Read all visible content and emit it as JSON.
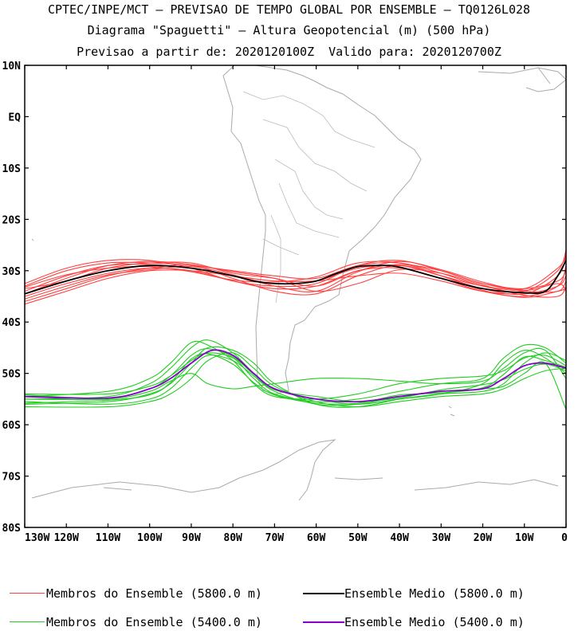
{
  "title": {
    "line1": "CPTEC/INPE/MCT — PREVISAO DE TEMPO GLOBAL POR ENSEMBLE — TQ0126L028",
    "line2": "Diagrama \"Spaguetti\" — Altura Geopotencial (m) (500 hPa)",
    "line3": "Previsao a partir de: 2020120100Z  Valido para: 2020120700Z"
  },
  "colors": {
    "member_5800": "#ff4040",
    "mean_5800": "#000000",
    "member_5400": "#22cc22",
    "mean_5400": "#8800cc",
    "coast": "#aaaaaa"
  },
  "legend": [
    {
      "label": "Membros do Ensemble (5800.0 m)",
      "color": "#ff4040",
      "bold": false
    },
    {
      "label": "Ensemble Medio (5800.0 m)",
      "color": "#000000",
      "bold": true
    },
    {
      "label": "Membros do Ensemble (5400.0 m)",
      "color": "#22cc22",
      "bold": false
    },
    {
      "label": "Ensemble Medio (5400.0 m)",
      "color": "#8800cc",
      "bold": true
    }
  ],
  "chart_data": {
    "type": "line",
    "map_region": "South America",
    "x_axis": {
      "range": [
        -130,
        0
      ],
      "ticks": [
        -130,
        -120,
        -110,
        -100,
        -90,
        -80,
        -70,
        -60,
        -50,
        -40,
        -30,
        -20,
        -10,
        0
      ],
      "tick_labels": [
        "130W",
        "120W",
        "110W",
        "100W",
        "90W",
        "80W",
        "70W",
        "60W",
        "50W",
        "40W",
        "30W",
        "20W",
        "10W",
        "0"
      ]
    },
    "y_axis": {
      "range": [
        -80,
        10
      ],
      "ticks": [
        10,
        0,
        -10,
        -20,
        -30,
        -40,
        -50,
        -60,
        -70,
        -80
      ],
      "tick_labels": [
        "10N",
        "EQ",
        "10S",
        "20S",
        "30S",
        "40S",
        "50S",
        "60S",
        "70S",
        "80S"
      ]
    },
    "series": [
      {
        "name": "Ensemble Medio (5800.0 m)",
        "group": "5800",
        "kind": "mean",
        "lon": [
          -130,
          -120,
          -110,
          -100,
          -90,
          -80,
          -75,
          -70,
          -65,
          -60,
          -55,
          -50,
          -45,
          -40,
          -30,
          -20,
          -10,
          -5,
          -2,
          0
        ],
        "lat": [
          -34.5,
          -32,
          -30,
          -29,
          -29.5,
          -31,
          -32,
          -32.5,
          -32.5,
          -32,
          -30.5,
          -29.2,
          -29,
          -29.3,
          -31.5,
          -33.5,
          -34.3,
          -34,
          -31,
          -28
        ]
      },
      {
        "name": "Ensemble Medio (5400.0 m)",
        "group": "5400",
        "kind": "mean",
        "lon": [
          -130,
          -110,
          -100,
          -95,
          -90,
          -85,
          -80,
          -75,
          -70,
          -60,
          -50,
          -40,
          -30,
          -20,
          -15,
          -10,
          -5,
          0
        ],
        "lat": [
          -54.5,
          -54.8,
          -53,
          -51,
          -48,
          -45.5,
          -46.5,
          -50,
          -53,
          -55,
          -55.5,
          -54.5,
          -53.5,
          -53,
          -51,
          -48.5,
          -48,
          -49
        ]
      }
    ],
    "members_5800": [
      {
        "lon": [
          -130,
          -120,
          -110,
          -100,
          -90,
          -80,
          -70,
          -60,
          -50,
          -40,
          -30,
          -20,
          -10,
          -2,
          0
        ],
        "lat": [
          -33,
          -30,
          -28.5,
          -28.5,
          -29,
          -30,
          -31,
          -31.5,
          -29,
          -28.5,
          -30.5,
          -33,
          -34,
          -30,
          -26
        ]
      },
      {
        "lon": [
          -130,
          -120,
          -110,
          -100,
          -90,
          -80,
          -70,
          -60,
          -50,
          -40,
          -30,
          -20,
          -10,
          -2,
          0
        ],
        "lat": [
          -34,
          -31,
          -29,
          -28.8,
          -29.5,
          -31,
          -32.5,
          -32,
          -29.5,
          -29,
          -31,
          -33.5,
          -34.5,
          -31,
          -27
        ]
      },
      {
        "lon": [
          -130,
          -120,
          -110,
          -100,
          -90,
          -80,
          -70,
          -60,
          -50,
          -40,
          -30,
          -20,
          -10,
          -2,
          0
        ],
        "lat": [
          -35,
          -32.5,
          -30.5,
          -29.5,
          -30,
          -32,
          -33.5,
          -33,
          -30,
          -29.5,
          -31.5,
          -34,
          -35,
          -33,
          -29
        ]
      },
      {
        "lon": [
          -130,
          -120,
          -110,
          -100,
          -90,
          -80,
          -70,
          -60,
          -50,
          -40,
          -30,
          -20,
          -10,
          -2,
          0
        ],
        "lat": [
          -36,
          -33.5,
          -31,
          -29.5,
          -29,
          -31.5,
          -34,
          -34.5,
          -31,
          -29,
          -31,
          -33,
          -34,
          -34,
          -32
        ]
      },
      {
        "lon": [
          -130,
          -120,
          -110,
          -100,
          -90,
          -80,
          -70,
          -60,
          -50,
          -40,
          -30,
          -20,
          -10,
          -2,
          0
        ],
        "lat": [
          -33.5,
          -32,
          -29.5,
          -28.5,
          -28.5,
          -30.5,
          -31.5,
          -33,
          -30,
          -28.8,
          -30,
          -32.5,
          -33.5,
          -32,
          -30
        ]
      },
      {
        "lon": [
          -130,
          -120,
          -110,
          -100,
          -90,
          -80,
          -70,
          -60,
          -50,
          -40,
          -30,
          -20,
          -10,
          -2,
          0
        ],
        "lat": [
          -32.5,
          -29.5,
          -28,
          -28,
          -29.5,
          -32,
          -33,
          -32.5,
          -29,
          -28,
          -30,
          -32.5,
          -33.5,
          -29.5,
          -27
        ]
      },
      {
        "lon": [
          -130,
          -120,
          -110,
          -100,
          -90,
          -80,
          -70,
          -60,
          -50,
          -40,
          -30,
          -20,
          -10,
          -2,
          0
        ],
        "lat": [
          -36.5,
          -34,
          -31.5,
          -30,
          -30,
          -31,
          -32,
          -32,
          -31,
          -30.5,
          -32,
          -34,
          -34.5,
          -33,
          -31
        ]
      },
      {
        "lon": [
          -130,
          -120,
          -110,
          -100,
          -90,
          -80,
          -70,
          -60,
          -50,
          -40,
          -30,
          -20,
          -10,
          -2,
          0
        ],
        "lat": [
          -34.5,
          -31.5,
          -29,
          -28.2,
          -28.8,
          -30.2,
          -31.5,
          -34,
          -32.5,
          -29.8,
          -30.5,
          -32.8,
          -34.8,
          -35,
          -33
        ]
      },
      {
        "lon": [
          -130,
          -120,
          -110,
          -100,
          -90,
          -80,
          -70,
          -60,
          -50,
          -40,
          -30,
          -20,
          -10,
          -2,
          0
        ],
        "lat": [
          -33.2,
          -30.8,
          -29.5,
          -29.2,
          -30.2,
          -31.8,
          -32.2,
          -31.2,
          -28.5,
          -28.5,
          -31,
          -33.8,
          -35.2,
          -34,
          -33.5
        ]
      },
      {
        "lon": [
          -130,
          -120,
          -110,
          -100,
          -90,
          -80,
          -70,
          -60,
          -50,
          -40,
          -30,
          -20,
          -10,
          -2,
          0
        ],
        "lat": [
          -35.5,
          -33,
          -30.8,
          -29.8,
          -29.2,
          -30.8,
          -33,
          -34,
          -30.2,
          -28.2,
          -29.8,
          -32.2,
          -33.8,
          -32.5,
          -34
        ]
      }
    ],
    "members_5400": [
      {
        "lon": [
          -130,
          -110,
          -100,
          -95,
          -90,
          -86,
          -80,
          -75,
          -70,
          -60,
          -50,
          -40,
          -30,
          -20,
          -15,
          -10,
          -5,
          0
        ],
        "lat": [
          -55,
          -54.5,
          -52,
          -49,
          -45,
          -43.5,
          -46,
          -50,
          -53,
          -55,
          -56,
          -55,
          -54,
          -52,
          -48,
          -45.5,
          -47,
          -50
        ]
      },
      {
        "lon": [
          -130,
          -110,
          -100,
          -95,
          -90,
          -86,
          -80,
          -75,
          -70,
          -60,
          -50,
          -40,
          -30,
          -20,
          -15,
          -10,
          -5,
          0
        ],
        "lat": [
          -56,
          -55.5,
          -54,
          -52,
          -48,
          -45,
          -45.5,
          -48,
          -52,
          -56,
          -56.5,
          -55,
          -54,
          -53.5,
          -52,
          -48,
          -46,
          -47.5
        ]
      },
      {
        "lon": [
          -130,
          -110,
          -100,
          -95,
          -90,
          -86,
          -80,
          -75,
          -70,
          -60,
          -50,
          -40,
          -30,
          -20,
          -15,
          -10,
          -5,
          0
        ],
        "lat": [
          -54,
          -54,
          -52.5,
          -50.5,
          -47.5,
          -46,
          -47,
          -51,
          -54,
          -55.5,
          -55,
          -53.5,
          -52,
          -51,
          -47,
          -44.5,
          -45,
          -48
        ]
      },
      {
        "lon": [
          -130,
          -110,
          -100,
          -95,
          -90,
          -86,
          -80,
          -75,
          -70,
          -60,
          -50,
          -40,
          -30,
          -20,
          -15,
          -10,
          -5,
          0
        ],
        "lat": [
          -55.5,
          -56,
          -55,
          -53,
          -49,
          -46.5,
          -47.5,
          -50.5,
          -53.5,
          -56,
          -56,
          -54.5,
          -53.5,
          -53,
          -52.5,
          -50,
          -48,
          -57
        ]
      },
      {
        "lon": [
          -130,
          -110,
          -100,
          -95,
          -90,
          -86,
          -80,
          -75,
          -70,
          -60,
          -50,
          -40,
          -30,
          -20,
          -15,
          -10,
          -5,
          0
        ],
        "lat": [
          -54.5,
          -53.5,
          -51,
          -48,
          -44,
          -44.5,
          -47.5,
          -52,
          -54.5,
          -55,
          -54,
          -52,
          -51,
          -50.5,
          -49.5,
          -47,
          -46.5,
          -48.5
        ]
      },
      {
        "lon": [
          -130,
          -110,
          -100,
          -95,
          -90,
          -86,
          -80,
          -75,
          -70,
          -60,
          -50,
          -40,
          -30,
          -20,
          -15,
          -10,
          -5,
          0
        ],
        "lat": [
          -56.5,
          -56.5,
          -55.5,
          -54,
          -51,
          -47.5,
          -46,
          -49,
          -52.5,
          -55.5,
          -56.5,
          -55.5,
          -54.5,
          -54,
          -53,
          -51,
          -49.5,
          -49
        ]
      },
      {
        "lon": [
          -130,
          -110,
          -100,
          -95,
          -90,
          -86,
          -80,
          -75,
          -70,
          -60,
          -50,
          -40,
          -30,
          -20,
          -15,
          -10,
          -5,
          0
        ],
        "lat": [
          -55,
          -55,
          -53.5,
          -51.5,
          -50,
          -52,
          -53,
          -52.5,
          -52,
          -51,
          -51,
          -51.5,
          -52,
          -51.5,
          -49,
          -46,
          -45.5,
          -51
        ]
      },
      {
        "lon": [
          -130,
          -110,
          -100,
          -95,
          -90,
          -86,
          -80,
          -75,
          -70,
          -60,
          -50,
          -40,
          -30,
          -20,
          -15,
          -10,
          -5,
          0
        ],
        "lat": [
          -54.2,
          -54.8,
          -53,
          -50.5,
          -46.5,
          -45.2,
          -46.8,
          -50.2,
          -53.2,
          -54.5,
          -55.5,
          -54.8,
          -53.2,
          -52.2,
          -51.2,
          -49.2,
          -48.2,
          -49.5
        ]
      },
      {
        "lon": [
          -130,
          -110,
          -100,
          -95,
          -90,
          -86,
          -80,
          -75,
          -70,
          -60,
          -50,
          -40,
          -30,
          -20,
          -15,
          -10,
          -5,
          0
        ],
        "lat": [
          -55.8,
          -55.2,
          -54.2,
          -51.8,
          -47.2,
          -46.2,
          -48.2,
          -51.8,
          -54.2,
          -55.8,
          -55.8,
          -54.2,
          -53.8,
          -52.8,
          -50.2,
          -46.8,
          -47.5,
          -48.8
        ]
      }
    ]
  }
}
